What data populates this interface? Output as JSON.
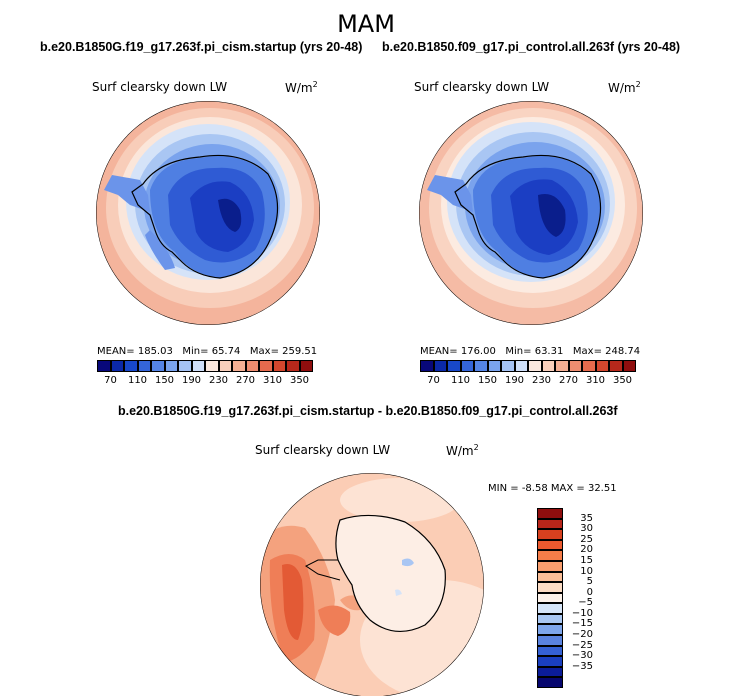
{
  "season": "MAM",
  "panels": [
    {
      "title": "b.e20.B1850G.f19_g17.263f.pi_cism.startup (yrs 20-48)",
      "variable": "Surf clearsky down LW",
      "units": "W/m",
      "units_exp": "2",
      "stats": {
        "mean_label": "MEAN=",
        "mean": "185.03",
        "min_label": "Min=",
        "min": "65.74",
        "max_label": "Max=",
        "max": "259.51"
      }
    },
    {
      "title": "b.e20.B1850.f09_g17.pi_control.all.263f (yrs 20-48)",
      "variable": "Surf clearsky down LW",
      "units": "W/m",
      "units_exp": "2",
      "stats": {
        "mean_label": "MEAN=",
        "mean": "176.00",
        "min_label": "Min=",
        "min": "63.31",
        "max_label": "Max=",
        "max": "248.74"
      }
    }
  ],
  "colorbar_main": {
    "labels": [
      "70",
      "110",
      "150",
      "190",
      "230",
      "270",
      "310",
      "350"
    ],
    "colors": [
      "#08087a",
      "#0b29a8",
      "#1848c9",
      "#3465d9",
      "#5585e6",
      "#7aa4ee",
      "#a5c3f4",
      "#cfdff9",
      "#fbe8de",
      "#f9cfbb",
      "#f4af94",
      "#ee8d70",
      "#e66a4d",
      "#d2472e",
      "#b6281b",
      "#8f0e0e"
    ]
  },
  "diff": {
    "title": "b.e20.B1850G.f19_g17.263f.pi_cism.startup - b.e20.B1850.f09_g17.pi_control.all.263f",
    "variable": "Surf clearsky down LW",
    "units": "W/m",
    "units_exp": "2",
    "stats": {
      "min_label": "MIN =",
      "min": "-8.58",
      "max_label": "MAX =",
      "max": "32.51"
    }
  },
  "colorbar_diff": {
    "labels": [
      "35",
      "30",
      "25",
      "20",
      "15",
      "10",
      "5",
      "0",
      "−5",
      "−10",
      "−15",
      "−20",
      "−25",
      "−30",
      "−35"
    ],
    "colors": [
      "#8f0e0e",
      "#b8261a",
      "#d7401f",
      "#ec5a2f",
      "#f67d49",
      "#f99e6e",
      "#fbbe97",
      "#fcdcc4",
      "#fdf2ea",
      "#d6e5f8",
      "#a9c7f2",
      "#7ea6ec",
      "#5a83e0",
      "#3561d4",
      "#1a3fbf",
      "#0b1c98",
      "#06066e"
    ]
  }
}
